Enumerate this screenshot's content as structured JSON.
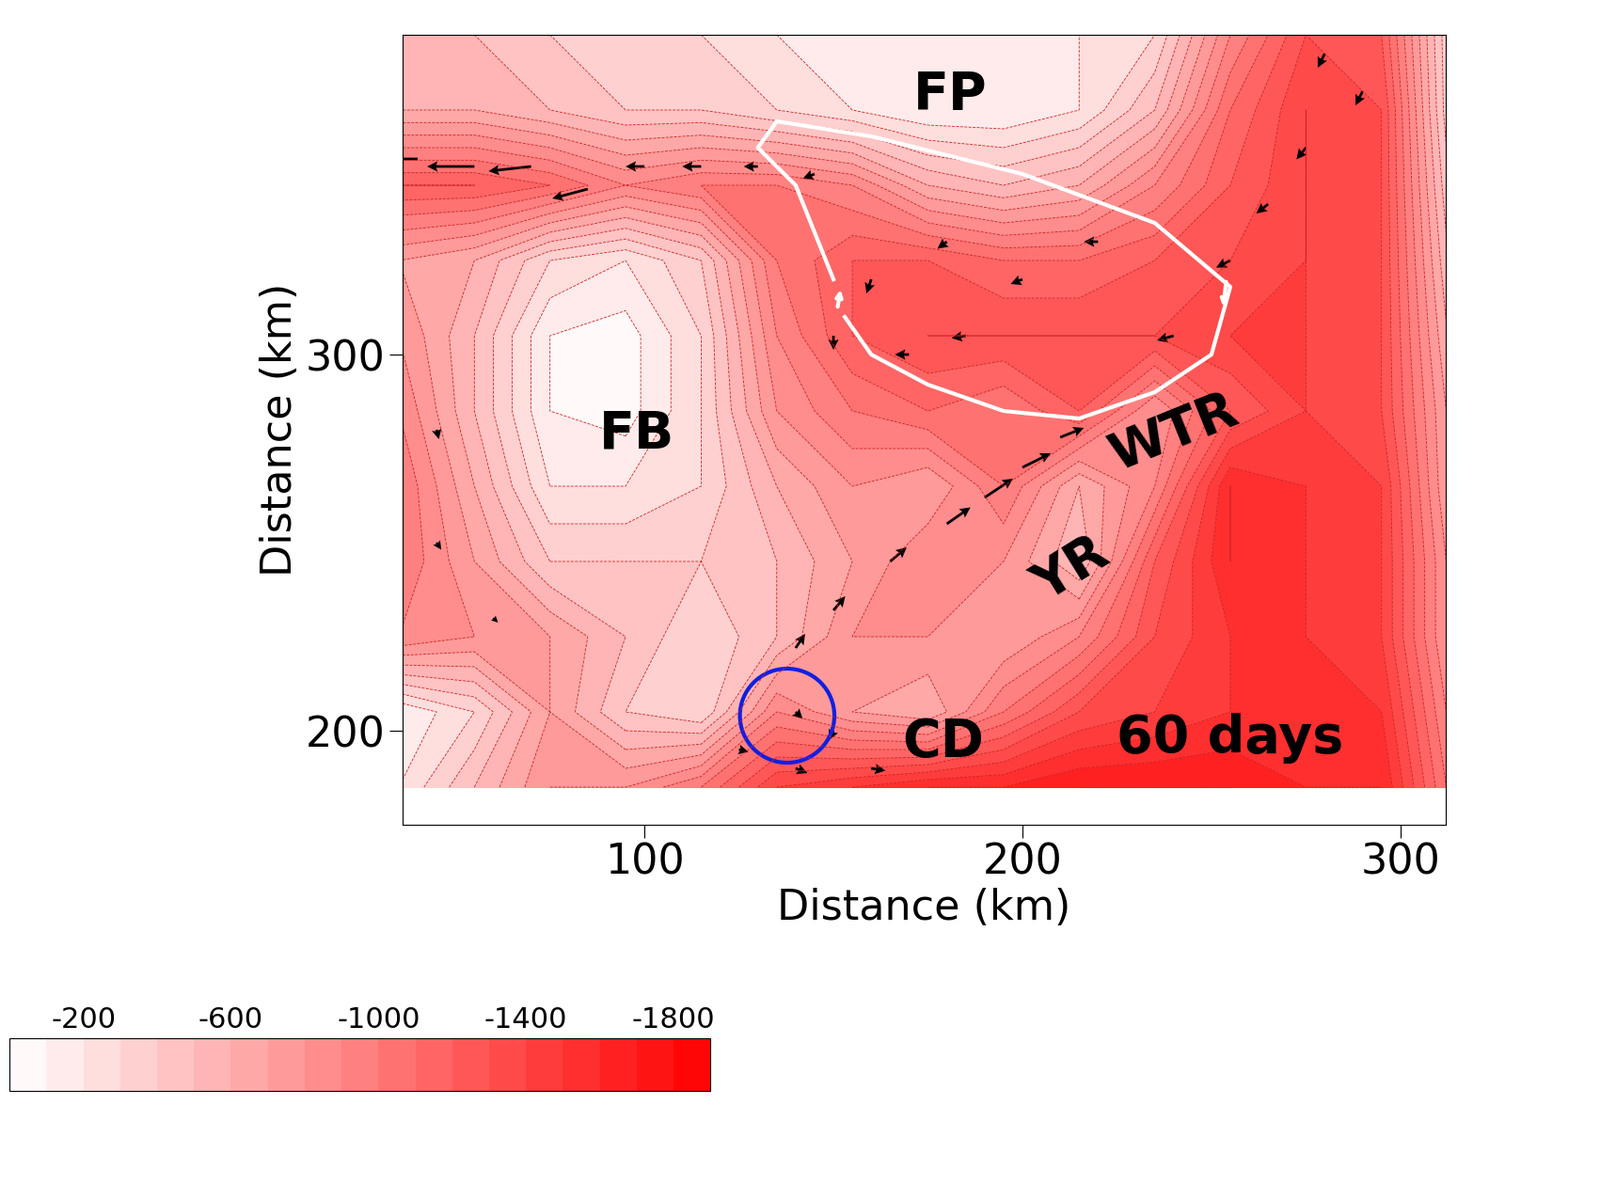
{
  "chart_data": {
    "type": "contour",
    "xlabel": "Distance (km)",
    "ylabel": "Distance (km)",
    "xlim": [
      36,
      312
    ],
    "ylim": [
      175,
      385
    ],
    "xticks": [
      100,
      200,
      300
    ],
    "yticks": [
      200,
      300
    ],
    "x": [
      35,
      55,
      75,
      95,
      115,
      135,
      155,
      175,
      195,
      215,
      235,
      255,
      275,
      295,
      315
    ],
    "y": [
      185,
      205,
      225,
      245,
      265,
      285,
      305,
      325,
      345,
      365,
      385
    ],
    "depth": [
      [
        -200,
        -500,
        -800,
        -800,
        -1000,
        -1400,
        -1500,
        -1600,
        -1600,
        -1700,
        -1700,
        -1700,
        -1600,
        -1600,
        -900
      ],
      [
        -100,
        -300,
        -700,
        -400,
        -300,
        -900,
        -700,
        -600,
        -1000,
        -1300,
        -1400,
        -1500,
        -1500,
        -1500,
        -800
      ],
      [
        -900,
        -800,
        -700,
        -500,
        -300,
        -500,
        -800,
        -800,
        -700,
        -900,
        -1300,
        -1500,
        -1500,
        -1400,
        -700
      ],
      [
        -1000,
        -700,
        -400,
        -400,
        -400,
        -500,
        -700,
        -900,
        -800,
        -500,
        -1200,
        -1600,
        -1500,
        -1400,
        -700
      ],
      [
        -1000,
        -600,
        -200,
        -200,
        -300,
        -600,
        -800,
        -700,
        -1000,
        -600,
        -900,
        -1600,
        -1500,
        -1400,
        -600
      ],
      [
        -900,
        -500,
        -100,
        -50,
        -300,
        -800,
        -1000,
        -1100,
        -1000,
        -1200,
        -800,
        -1200,
        -1400,
        -1300,
        -600
      ],
      [
        -800,
        -500,
        -100,
        -50,
        -300,
        -900,
        -1200,
        -1300,
        -1300,
        -1300,
        -1300,
        -1400,
        -1400,
        -1300,
        -500
      ],
      [
        -700,
        -600,
        -300,
        -200,
        -400,
        -1000,
        -1200,
        -1200,
        -1100,
        -1100,
        -1200,
        -1300,
        -1400,
        -1300,
        -400
      ],
      [
        -1200,
        -1200,
        -1100,
        -900,
        -1000,
        -1000,
        -900,
        -600,
        -500,
        -600,
        -900,
        -1200,
        -1400,
        -1300,
        -300
      ],
      [
        -600,
        -600,
        -500,
        -400,
        -400,
        -300,
        -200,
        -100,
        -100,
        -200,
        -500,
        -1100,
        -1400,
        -1300,
        -200
      ],
      [
        -500,
        -500,
        -400,
        -300,
        -300,
        -200,
        -100,
        -100,
        -100,
        -200,
        -300,
        -900,
        -1300,
        -1200,
        -200
      ]
    ],
    "colorbar": {
      "range": [
        -1900,
        0
      ],
      "levels": [
        -1900,
        -1800,
        -1700,
        -1600,
        -1500,
        -1400,
        -1300,
        -1200,
        -1100,
        -1000,
        -900,
        -800,
        -700,
        -600,
        -500,
        -400,
        -300,
        -200,
        -100,
        0
      ],
      "ticks": [
        -200,
        -600,
        -1000,
        -1400,
        -1800
      ]
    },
    "vectors": {
      "x": [
        40,
        55,
        70,
        85,
        100,
        115,
        130,
        145,
        280,
        290,
        275,
        265,
        255,
        240,
        140,
        150,
        165,
        180,
        190,
        200,
        210,
        170,
        185,
        200,
        220,
        180,
        160,
        150,
        125,
        140,
        150,
        160,
        140,
        45,
        45,
        60
      ],
      "y": [
        352,
        350,
        350,
        344,
        350,
        350,
        350,
        348,
        380,
        370,
        355,
        340,
        325,
        305,
        222,
        232,
        245,
        255,
        262,
        270,
        278,
        300,
        305,
        320,
        330,
        330,
        320,
        305,
        195,
        190,
        200,
        190,
        205,
        280,
        250,
        230
      ],
      "u": [
        -20,
        -20,
        -18,
        -15,
        -8,
        -8,
        -6,
        -5,
        -3,
        -3,
        -4,
        -5,
        -6,
        -7,
        4,
        5,
        7,
        10,
        12,
        12,
        10,
        -6,
        -6,
        -5,
        -6,
        -4,
        -2,
        0,
        4,
        5,
        -2,
        6,
        3,
        1,
        2,
        2
      ],
      "v": [
        0,
        0,
        -2,
        -4,
        0,
        0,
        0,
        -2,
        -6,
        -6,
        -5,
        -4,
        -3,
        -2,
        6,
        6,
        6,
        7,
        8,
        6,
        4,
        0,
        -1,
        -2,
        0,
        -3,
        -6,
        -6,
        -1,
        -2,
        -4,
        -1,
        -3,
        -4,
        -3,
        -2
      ]
    },
    "annotations": [
      {
        "text": "FP",
        "x": 181,
        "y": 369
      },
      {
        "text": "FB",
        "x": 98,
        "y": 279
      },
      {
        "text": "WTR",
        "x": 240,
        "y": 279
      },
      {
        "text": "YR",
        "x": 213,
        "y": 243
      },
      {
        "text": "CD",
        "x": 179,
        "y": 197
      },
      {
        "text": "60 days",
        "x": 255,
        "y": 198
      }
    ]
  }
}
